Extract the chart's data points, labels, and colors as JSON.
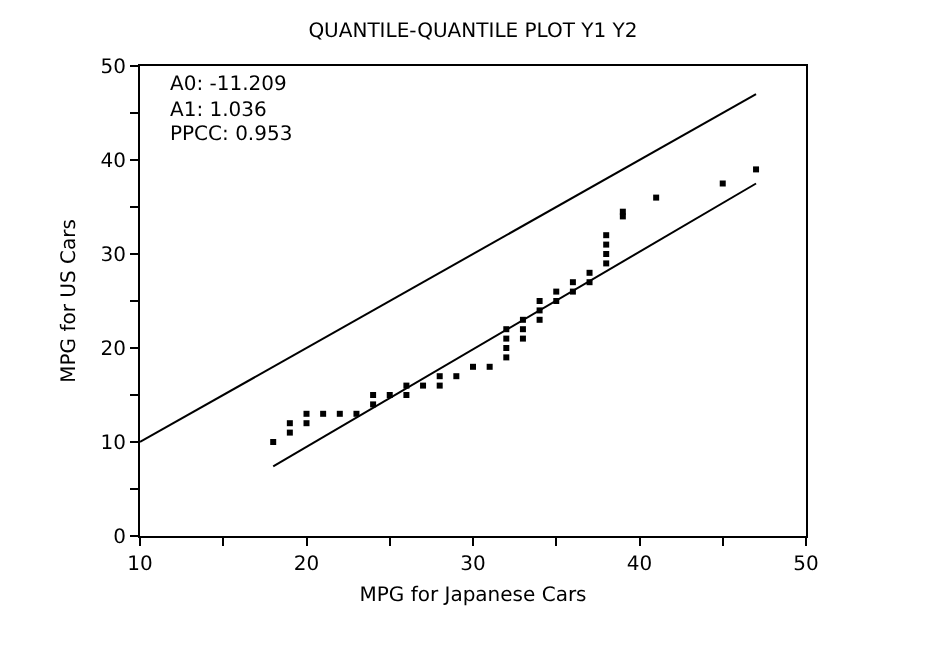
{
  "chart_data": {
    "type": "scatter",
    "title": "QUANTILE-QUANTILE PLOT Y1 Y2",
    "xlabel": "MPG for Japanese Cars",
    "ylabel": "MPG for US Cars",
    "annotations": [
      "A0: -11.209",
      "A1: 1.036",
      "PPCC: 0.953"
    ],
    "xlim": [
      10,
      50
    ],
    "ylim": [
      0,
      50
    ],
    "xticks": [
      10,
      {
        "value": 15,
        "label": null
      },
      20,
      {
        "value": 25,
        "label": null
      },
      30,
      {
        "value": 35,
        "label": null
      },
      40,
      {
        "value": 45,
        "label": null
      },
      50
    ],
    "yticks": [
      0,
      {
        "value": 5,
        "label": null
      },
      10,
      {
        "value": 15,
        "label": null
      },
      20,
      {
        "value": 25,
        "label": null
      },
      30,
      {
        "value": 35,
        "label": null
      },
      40,
      {
        "value": 45,
        "label": null
      },
      50
    ],
    "series": [
      {
        "marker": "square",
        "color": "#000000",
        "x": [
          18,
          19,
          19,
          20,
          20,
          21,
          22,
          23,
          24,
          24,
          25,
          26,
          26,
          27,
          28,
          28,
          29,
          30,
          31,
          32,
          32,
          32,
          32,
          33,
          33,
          33,
          34,
          34,
          34,
          35,
          35,
          36,
          36,
          37,
          37,
          38,
          38,
          38,
          38,
          39,
          39,
          41,
          45,
          47
        ],
        "values": [
          10,
          12,
          11,
          13,
          12,
          13,
          13,
          13,
          15,
          14,
          15,
          16,
          15,
          16,
          17,
          16,
          17,
          18,
          18,
          19,
          20,
          21,
          22,
          21,
          22,
          23,
          25,
          24,
          23,
          26,
          25,
          27,
          26,
          28,
          27,
          32,
          31,
          30,
          29,
          34.5,
          34,
          36,
          37.5,
          39
        ]
      },
      {
        "type": "line",
        "marker": "none",
        "color": "#000000",
        "line_style": "solid",
        "x": [
          10,
          47
        ],
        "values": [
          10,
          47
        ]
      },
      {
        "type": "line",
        "marker": "none",
        "color": "#000000",
        "line_style": "solid",
        "x": [
          18,
          47
        ],
        "values": [
          7.4,
          37.5
        ]
      }
    ]
  }
}
